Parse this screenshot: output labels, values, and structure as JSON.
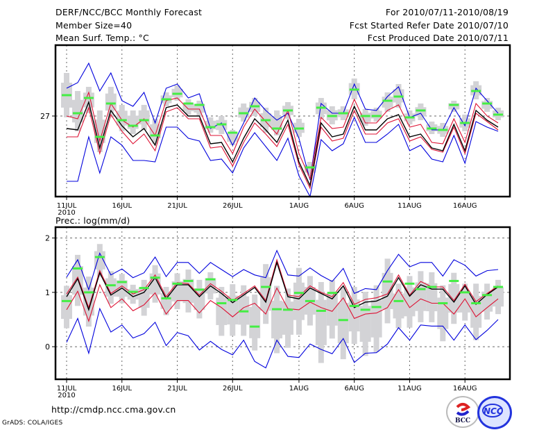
{
  "header": {
    "title": "DERF/NCC/BCC Monthly Forecast",
    "member_size": "Member Size=40",
    "variable_top": "Mean Surf. Temp.: °C",
    "period": "For 2010/07/11-2010/08/19",
    "started": "Fcst Started Refer Date 2010/07/10",
    "produced": "Fcst Produced Date 2010/07/11"
  },
  "footer": {
    "url": "http://cmdp.ncc.cma.gov.cn",
    "grads": "GrADS: COLA/IGES",
    "logo_left": "BCC",
    "logo_right": "NCC"
  },
  "colors": {
    "envelope": "#0000dd",
    "spread": "#dd1133",
    "mean": "#000000",
    "box": "#d3d3d6",
    "marker": "#44ee44",
    "grid": "#666666"
  },
  "chart_data": [
    {
      "type": "line",
      "title": "Mean Surf. Temp.: °C",
      "xlabel": "",
      "ylabel": "",
      "x_start": "2010-07-11",
      "x_tick_labels": [
        "11JUL",
        "16JUL",
        "21JUL",
        "26JUL",
        "1AUG",
        "6AUG",
        "11AUG",
        "16AUG"
      ],
      "x_tick_days": [
        0,
        5,
        10,
        15,
        21,
        26,
        31,
        36
      ],
      "year_label": "2010",
      "y_tick_labels": [
        "27"
      ],
      "y_tick_values": [
        27
      ],
      "ylim": [
        24.1,
        29.55
      ],
      "grid": true,
      "series": [
        {
          "name": "max",
          "color": "blue",
          "values": [
            28.0,
            28.2,
            28.9,
            27.9,
            28.55,
            27.55,
            27.35,
            27.85,
            26.75,
            28.0,
            28.15,
            27.65,
            27.8,
            26.55,
            26.75,
            25.95,
            26.75,
            27.65,
            27.2,
            26.85,
            27.1,
            26.2,
            24.7,
            27.45,
            27.1,
            27.1,
            28.15,
            27.25,
            27.2,
            27.7,
            28.05,
            26.95,
            27.1,
            26.5,
            26.5,
            27.3,
            26.65,
            28.0,
            27.55,
            27.1
          ]
        },
        {
          "name": "p75",
          "color": "red",
          "values": [
            27.0,
            26.9,
            27.85,
            26.1,
            27.45,
            26.85,
            26.6,
            26.9,
            26.3,
            27.55,
            27.65,
            27.25,
            27.25,
            26.3,
            26.3,
            25.65,
            26.6,
            27.25,
            26.8,
            26.35,
            27.2,
            25.65,
            24.75,
            26.95,
            26.55,
            26.6,
            27.6,
            26.75,
            26.75,
            27.2,
            27.4,
            26.6,
            26.7,
            26.05,
            26.0,
            26.9,
            26.05,
            27.45,
            27.0,
            26.75
          ]
        },
        {
          "name": "mean",
          "color": "black",
          "values": [
            26.55,
            26.5,
            27.5,
            25.85,
            27.2,
            26.65,
            26.25,
            26.55,
            25.95,
            27.3,
            27.4,
            27.0,
            27.0,
            26.0,
            26.05,
            25.35,
            26.2,
            26.9,
            26.5,
            26.05,
            26.85,
            25.35,
            24.5,
            26.75,
            26.25,
            26.35,
            27.35,
            26.5,
            26.5,
            26.9,
            27.05,
            26.25,
            26.35,
            25.85,
            25.75,
            26.7,
            25.75,
            27.2,
            26.85,
            26.6
          ]
        },
        {
          "name": "p25",
          "color": "red",
          "values": [
            26.25,
            26.25,
            27.3,
            25.65,
            27.05,
            26.45,
            26.0,
            26.35,
            25.75,
            27.15,
            27.3,
            26.9,
            26.9,
            25.85,
            25.9,
            25.2,
            26.05,
            26.75,
            26.35,
            25.9,
            26.7,
            25.25,
            24.4,
            26.6,
            26.1,
            26.2,
            27.2,
            26.35,
            26.35,
            26.75,
            26.9,
            26.1,
            26.25,
            25.8,
            25.7,
            26.6,
            25.65,
            27.1,
            26.8,
            26.5
          ]
        },
        {
          "name": "min",
          "color": "blue",
          "values": [
            24.65,
            24.65,
            26.25,
            24.95,
            26.25,
            25.95,
            25.4,
            25.4,
            25.35,
            26.6,
            26.6,
            26.2,
            26.1,
            25.4,
            25.45,
            24.95,
            25.85,
            26.4,
            25.9,
            25.4,
            26.2,
            24.85,
            24.1,
            26.15,
            25.75,
            26.0,
            26.95,
            26.05,
            26.05,
            26.35,
            26.7,
            25.75,
            25.95,
            25.45,
            25.35,
            26.3,
            25.3,
            26.8,
            26.6,
            26.45
          ]
        },
        {
          "name": "obs_marker",
          "color": "green",
          "values": [
            27.75,
            27.1,
            27.65,
            26.25,
            27.45,
            26.85,
            26.65,
            26.85,
            26.3,
            27.6,
            27.8,
            27.45,
            27.4,
            26.6,
            26.7,
            26.4,
            27.1,
            27.35,
            26.85,
            26.55,
            27.2,
            26.55,
            25.15,
            27.3,
            27.0,
            27.1,
            27.95,
            27.0,
            27.0,
            27.55,
            27.7,
            26.95,
            27.2,
            26.55,
            26.5,
            27.4,
            26.75,
            27.9,
            27.45,
            27.05
          ]
        },
        {
          "name": "box_top",
          "color": "grey",
          "values": [
            28.55,
            27.9,
            28.05,
            27.2,
            28.05,
            27.4,
            27.2,
            27.4,
            26.9,
            27.85,
            28.1,
            27.6,
            27.55,
            26.95,
            27.0,
            26.5,
            27.45,
            27.65,
            27.3,
            27.2,
            27.5,
            26.9,
            25.35,
            27.65,
            27.35,
            27.35,
            28.35,
            27.25,
            27.3,
            27.85,
            28.15,
            27.2,
            27.45,
            26.8,
            26.75,
            27.55,
            27.05,
            28.25,
            27.65,
            27.3
          ]
        },
        {
          "name": "box_bottom",
          "color": "grey",
          "values": [
            26.95,
            26.45,
            27.1,
            25.7,
            26.95,
            26.45,
            26.35,
            26.5,
            26.0,
            27.35,
            27.55,
            27.05,
            27.0,
            26.4,
            26.35,
            25.95,
            26.8,
            27.0,
            26.4,
            26.3,
            26.9,
            26.25,
            24.85,
            26.9,
            26.7,
            26.85,
            27.6,
            26.65,
            26.8,
            27.15,
            27.3,
            26.7,
            26.85,
            26.35,
            26.25,
            27.15,
            26.45,
            27.6,
            27.15,
            26.85
          ]
        }
      ]
    },
    {
      "type": "line",
      "title": "Prec.: log(mm/d)",
      "xlabel": "",
      "ylabel": "",
      "x_start": "2010-07-11",
      "x_tick_labels": [
        "11JUL",
        "16JUL",
        "21JUL",
        "26JUL",
        "1AUG",
        "6AUG",
        "11AUG",
        "16AUG"
      ],
      "x_tick_days": [
        0,
        5,
        10,
        15,
        21,
        26,
        31,
        36
      ],
      "year_label": "2010",
      "y_tick_labels": [
        "0",
        "1",
        "2"
      ],
      "y_tick_values": [
        0,
        1,
        2
      ],
      "ylim": [
        -0.6,
        2.2
      ],
      "grid": true,
      "series": [
        {
          "name": "max",
          "color": "blue",
          "values": [
            1.28,
            1.6,
            1.05,
            1.72,
            1.32,
            1.43,
            1.27,
            1.36,
            1.65,
            1.29,
            1.55,
            1.55,
            1.35,
            1.55,
            1.42,
            1.29,
            1.42,
            1.32,
            1.27,
            1.77,
            1.32,
            1.3,
            1.45,
            1.31,
            1.2,
            1.44,
            0.98,
            1.07,
            1.05,
            1.4,
            1.7,
            1.47,
            1.55,
            1.55,
            1.3,
            1.6,
            1.5,
            1.3,
            1.4,
            1.42
          ]
        },
        {
          "name": "p75",
          "color": "red",
          "values": [
            0.97,
            1.28,
            0.72,
            1.4,
            0.98,
            1.12,
            0.97,
            1.05,
            1.32,
            0.92,
            1.18,
            1.16,
            0.95,
            1.16,
            1.02,
            0.85,
            0.98,
            1.12,
            0.85,
            1.6,
            0.95,
            0.92,
            1.12,
            1.0,
            0.92,
            1.18,
            0.78,
            0.87,
            0.9,
            0.97,
            1.32,
            0.95,
            1.2,
            1.1,
            1.1,
            0.85,
            1.15,
            0.83,
            0.98,
            1.12
          ]
        },
        {
          "name": "mean",
          "color": "black",
          "values": [
            0.92,
            1.25,
            0.68,
            1.36,
            0.95,
            1.08,
            0.92,
            1.0,
            1.27,
            0.88,
            1.14,
            1.14,
            0.92,
            1.12,
            0.98,
            0.81,
            0.95,
            1.09,
            0.82,
            1.55,
            0.92,
            0.88,
            1.08,
            0.98,
            0.88,
            1.12,
            0.72,
            0.82,
            0.84,
            0.93,
            1.27,
            0.93,
            1.14,
            1.06,
            1.06,
            0.82,
            1.12,
            0.78,
            0.96,
            1.1
          ]
        },
        {
          "name": "p25",
          "color": "red",
          "values": [
            0.68,
            1.02,
            0.47,
            1.14,
            0.72,
            0.88,
            0.66,
            0.77,
            0.99,
            0.6,
            0.85,
            0.85,
            0.62,
            0.85,
            0.72,
            0.55,
            0.72,
            0.8,
            0.6,
            1.08,
            0.7,
            0.68,
            0.82,
            0.72,
            0.65,
            0.9,
            0.52,
            0.6,
            0.62,
            0.72,
            1.05,
            0.72,
            0.88,
            0.8,
            0.8,
            0.6,
            0.88,
            0.55,
            0.72,
            0.88
          ]
        },
        {
          "name": "min",
          "color": "blue",
          "values": [
            0.08,
            0.52,
            -0.12,
            0.7,
            0.27,
            0.4,
            0.16,
            0.24,
            0.45,
            0.02,
            0.26,
            0.2,
            -0.06,
            0.1,
            -0.05,
            -0.15,
            0.12,
            -0.27,
            -0.39,
            0.12,
            -0.18,
            -0.2,
            0.05,
            -0.05,
            -0.13,
            0.15,
            -0.29,
            -0.12,
            -0.11,
            0.05,
            0.35,
            0.12,
            0.4,
            0.38,
            0.38,
            0.12,
            0.4,
            0.13,
            0.3,
            0.5
          ]
        },
        {
          "name": "obs_marker",
          "color": "green",
          "values": [
            0.84,
            1.44,
            1.0,
            1.65,
            1.13,
            1.19,
            1.01,
            1.08,
            1.27,
            0.89,
            1.16,
            1.21,
            1.05,
            1.24,
            0.8,
            0.86,
            0.65,
            0.37,
            1.1,
            0.69,
            0.68,
            0.99,
            0.84,
            0.66,
            0.99,
            0.49,
            0.75,
            0.68,
            0.73,
            1.2,
            0.84,
            1.16,
            1.06,
            1.1,
            0.8,
            1.21,
            1.0,
            0.8,
            0.95,
            1.1
          ]
        },
        {
          "name": "box_top",
          "color": "grey",
          "values": [
            1.12,
            1.69,
            1.29,
            1.89,
            1.39,
            1.34,
            1.14,
            1.23,
            1.5,
            1.1,
            1.35,
            1.42,
            1.23,
            1.37,
            1.1,
            1.15,
            1.13,
            0.96,
            1.52,
            1.12,
            1.07,
            1.45,
            1.3,
            1.19,
            1.23,
            1.1,
            1.1,
            1.01,
            1.13,
            1.62,
            1.16,
            1.3,
            1.39,
            1.37,
            1.13,
            1.36,
            1.16,
            1.16,
            1.16,
            1.23
          ]
        },
        {
          "name": "box_bottom",
          "color": "grey",
          "values": [
            0.34,
            0.75,
            0.37,
            1.29,
            0.79,
            0.8,
            0.79,
            0.57,
            0.81,
            0.58,
            0.69,
            0.63,
            0.52,
            0.87,
            0.2,
            0.2,
            0.2,
            -0.07,
            0.42,
            -0.12,
            -0.02,
            0.22,
            0.39,
            -0.3,
            0.15,
            -0.23,
            0.05,
            -0.17,
            -0.1,
            0.43,
            0.34,
            0.35,
            0.45,
            0.45,
            0.1,
            0.42,
            0.48,
            0.12,
            0.5,
            0.6
          ]
        }
      ]
    }
  ]
}
